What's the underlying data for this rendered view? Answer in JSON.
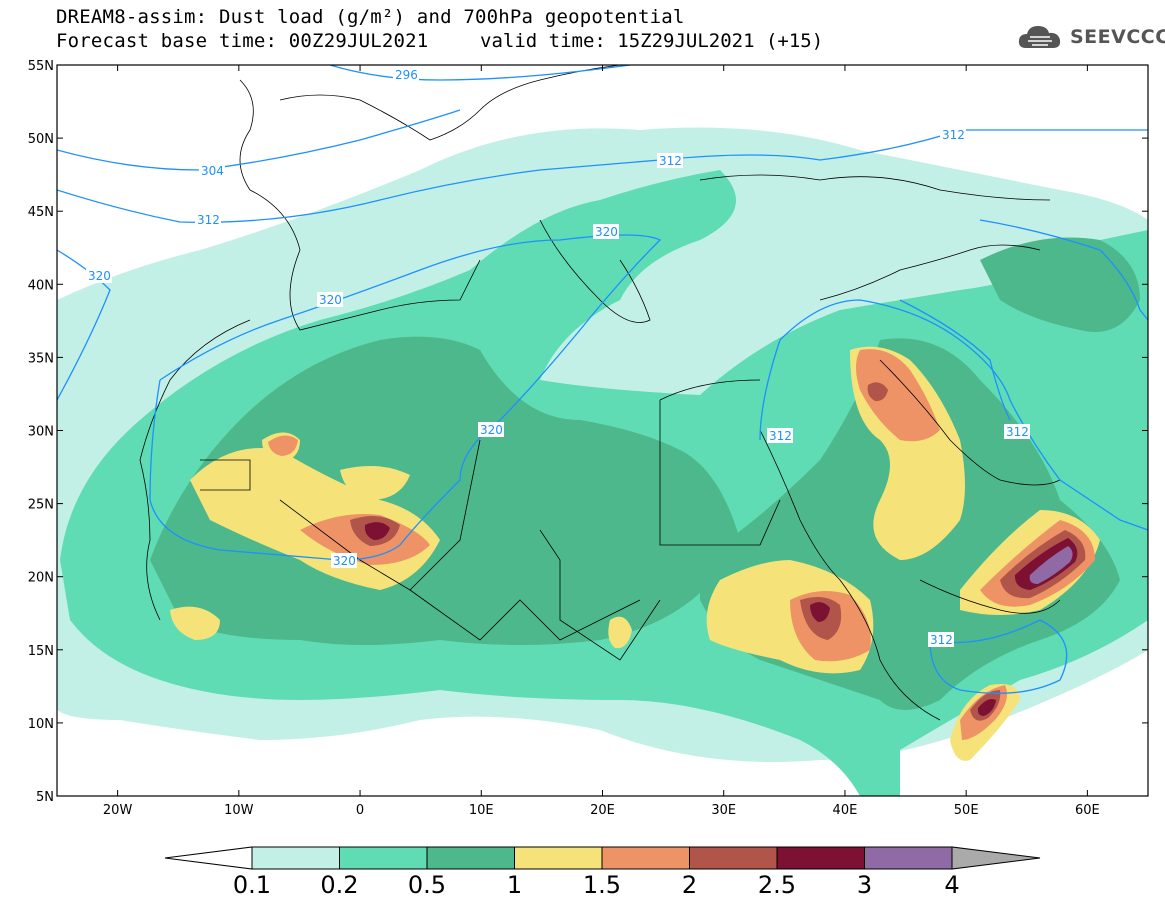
{
  "header": {
    "title_line1": "DREAM8-assim: Dust load (g/m²) and 700hPa geopotential",
    "title_line2_left": "Forecast base time: 00Z29JUL2021",
    "title_line2_right": "valid time: 15Z29JUL2021 (+15)",
    "logo_text": "SEEVCCC"
  },
  "map": {
    "lon_range": [
      -25,
      65
    ],
    "lat_range": [
      5,
      55
    ],
    "lat_ticks": [
      "55N",
      "50N",
      "45N",
      "40N",
      "35N",
      "30N",
      "25N",
      "20N",
      "15N",
      "10N",
      "5N"
    ],
    "lon_ticks": [
      "20W",
      "10W",
      "0",
      "10E",
      "20E",
      "30E",
      "40E",
      "50E",
      "60E"
    ],
    "contour_labels": [
      "296",
      "304",
      "312",
      "312",
      "312",
      "312",
      "312",
      "312",
      "320",
      "320",
      "320",
      "320",
      "320"
    ]
  },
  "colorbar": {
    "levels": [
      "0.1",
      "0.2",
      "0.5",
      "1",
      "1.5",
      "2",
      "2.5",
      "3",
      "4"
    ],
    "colors": [
      "#c3f0e6",
      "#5fdcb3",
      "#4db88c",
      "#f5e37a",
      "#ee9365",
      "#b1544a",
      "#7d1133",
      "#8f6aa4"
    ],
    "under_color": "#ffffff",
    "over_color": "#aaaaaa"
  },
  "colors": {
    "contour": "#1e90ff",
    "land_background": "#ffffff"
  }
}
